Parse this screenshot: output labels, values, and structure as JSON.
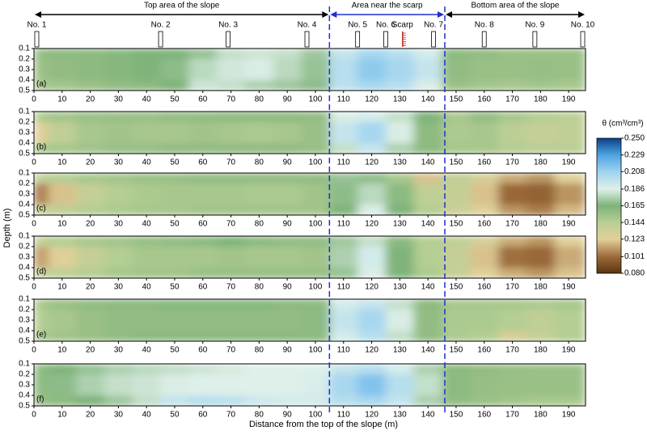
{
  "chart_data": {
    "type": "contour",
    "x_label": "Distance from the top of the slope (m)",
    "y_label": "Depth (m)",
    "xlim": [
      0,
      196
    ],
    "xticks": [
      0,
      10,
      20,
      30,
      40,
      50,
      60,
      70,
      80,
      90,
      100,
      110,
      120,
      130,
      140,
      150,
      160,
      170,
      180,
      190
    ],
    "ylim": [
      0.1,
      0.5
    ],
    "yticks": [
      0.1,
      0.2,
      0.3,
      0.4,
      0.5
    ],
    "x": [
      0,
      10,
      20,
      30,
      40,
      50,
      60,
      70,
      80,
      90,
      100,
      110,
      120,
      130,
      140,
      150,
      160,
      170,
      180,
      190
    ],
    "depths": [
      0.1,
      0.3,
      0.5
    ],
    "colorbar": {
      "label": "θ (cm³/cm³)",
      "ticks": [
        {
          "value": 0.08,
          "label": "0.080"
        },
        {
          "value": 0.101,
          "label": "0.101"
        },
        {
          "value": 0.123,
          "label": "0.123"
        },
        {
          "value": 0.144,
          "label": "0.144"
        },
        {
          "value": 0.165,
          "label": "0.165"
        },
        {
          "value": 0.186,
          "label": "0.186"
        },
        {
          "value": 0.208,
          "label": "0.208"
        },
        {
          "value": 0.229,
          "label": "0.229"
        },
        {
          "value": 0.25,
          "label": "0.250"
        }
      ],
      "colors": [
        "#5c3310",
        "#9c6b3a",
        "#e3cf9a",
        "#b7cf94",
        "#7fb37a",
        "#dff0ea",
        "#9ed3f0",
        "#4da3e0",
        "#0b3f8a"
      ]
    },
    "regions": [
      {
        "label": "Top area of the slope",
        "from": 0,
        "to": 105,
        "color": "#000000",
        "text_color": "#1f2fa0"
      },
      {
        "label": "Area near the scarp",
        "from": 105,
        "to": 146,
        "color": "#1f2fd0",
        "text_color": "#1f2fa0"
      },
      {
        "label": "Bottom area of the slope",
        "from": 146,
        "to": 196,
        "color": "#000000",
        "text_color": "#1f2fa0"
      }
    ],
    "dividers": [
      105,
      146
    ],
    "probes": [
      {
        "label": "No. 1",
        "x": 1
      },
      {
        "label": "No. 2",
        "x": 45
      },
      {
        "label": "No. 3",
        "x": 69
      },
      {
        "label": "No. 4",
        "x": 97
      },
      {
        "label": "No. 5",
        "x": 115
      },
      {
        "label": "No. 6",
        "x": 125
      },
      {
        "label": "No. 7",
        "x": 142
      },
      {
        "label": "No. 8",
        "x": 160
      },
      {
        "label": "No. 9",
        "x": 178
      },
      {
        "label": "No. 10",
        "x": 195
      }
    ],
    "scarp": {
      "label": "Scarp",
      "x": 131
    },
    "panels": [
      {
        "label": "(a)",
        "z": [
          [
            0.158,
            0.16,
            0.16,
            0.162,
            0.165,
            0.165,
            0.17,
            0.18,
            0.182,
            0.18,
            0.172,
            0.195,
            0.205,
            0.2,
            0.19,
            0.16,
            0.158,
            0.155,
            0.155,
            0.155
          ],
          [
            0.155,
            0.158,
            0.16,
            0.162,
            0.165,
            0.168,
            0.178,
            0.183,
            0.185,
            0.178,
            0.17,
            0.2,
            0.212,
            0.205,
            0.195,
            0.158,
            0.155,
            0.155,
            0.156,
            0.155
          ],
          [
            0.15,
            0.152,
            0.155,
            0.158,
            0.16,
            0.165,
            0.182,
            0.18,
            0.175,
            0.172,
            0.168,
            0.198,
            0.205,
            0.2,
            0.185,
            0.155,
            0.152,
            0.15,
            0.152,
            0.15
          ]
        ]
      },
      {
        "label": "(b)",
        "z": [
          [
            0.148,
            0.152,
            0.155,
            0.156,
            0.156,
            0.158,
            0.158,
            0.16,
            0.16,
            0.16,
            0.158,
            0.185,
            0.19,
            0.18,
            0.165,
            0.15,
            0.158,
            0.15,
            0.145,
            0.142
          ],
          [
            0.125,
            0.14,
            0.15,
            0.152,
            0.15,
            0.15,
            0.152,
            0.15,
            0.148,
            0.15,
            0.155,
            0.195,
            0.205,
            0.185,
            0.16,
            0.148,
            0.15,
            0.142,
            0.138,
            0.14
          ],
          [
            0.148,
            0.15,
            0.152,
            0.155,
            0.156,
            0.158,
            0.158,
            0.158,
            0.158,
            0.158,
            0.156,
            0.18,
            0.195,
            0.175,
            0.16,
            0.15,
            0.15,
            0.145,
            0.142,
            0.142
          ]
        ]
      },
      {
        "label": "(c)",
        "z": [
          [
            0.14,
            0.145,
            0.15,
            0.152,
            0.155,
            0.156,
            0.158,
            0.158,
            0.158,
            0.158,
            0.158,
            0.17,
            0.168,
            0.15,
            0.12,
            0.14,
            0.13,
            0.115,
            0.11,
            0.125
          ],
          [
            0.105,
            0.12,
            0.138,
            0.145,
            0.148,
            0.15,
            0.15,
            0.15,
            0.148,
            0.148,
            0.152,
            0.168,
            0.178,
            0.16,
            0.14,
            0.138,
            0.12,
            0.1,
            0.098,
            0.11
          ],
          [
            0.135,
            0.14,
            0.145,
            0.148,
            0.15,
            0.15,
            0.152,
            0.152,
            0.152,
            0.152,
            0.152,
            0.165,
            0.185,
            0.165,
            0.145,
            0.135,
            0.125,
            0.11,
            0.105,
            0.118
          ]
        ]
      },
      {
        "label": "(d)",
        "z": [
          [
            0.14,
            0.145,
            0.15,
            0.152,
            0.156,
            0.158,
            0.16,
            0.165,
            0.16,
            0.158,
            0.158,
            0.172,
            0.18,
            0.16,
            0.145,
            0.14,
            0.13,
            0.115,
            0.11,
            0.125
          ],
          [
            0.112,
            0.125,
            0.138,
            0.145,
            0.15,
            0.15,
            0.15,
            0.152,
            0.15,
            0.15,
            0.152,
            0.175,
            0.19,
            0.165,
            0.145,
            0.138,
            0.12,
            0.102,
            0.1,
            0.115
          ],
          [
            0.135,
            0.14,
            0.145,
            0.15,
            0.152,
            0.152,
            0.155,
            0.155,
            0.155,
            0.155,
            0.155,
            0.17,
            0.185,
            0.165,
            0.148,
            0.138,
            0.125,
            0.115,
            0.11,
            0.12
          ]
        ]
      },
      {
        "label": "(e)",
        "z": [
          [
            0.15,
            0.155,
            0.158,
            0.16,
            0.16,
            0.162,
            0.162,
            0.162,
            0.162,
            0.16,
            0.16,
            0.19,
            0.195,
            0.18,
            0.16,
            0.15,
            0.15,
            0.15,
            0.148,
            0.15
          ],
          [
            0.145,
            0.15,
            0.155,
            0.158,
            0.158,
            0.158,
            0.158,
            0.158,
            0.158,
            0.158,
            0.16,
            0.195,
            0.205,
            0.185,
            0.158,
            0.148,
            0.148,
            0.145,
            0.14,
            0.145
          ],
          [
            0.148,
            0.152,
            0.155,
            0.158,
            0.16,
            0.16,
            0.16,
            0.16,
            0.16,
            0.16,
            0.16,
            0.19,
            0.2,
            0.18,
            0.158,
            0.148,
            0.145,
            0.13,
            0.138,
            0.145
          ]
        ]
      },
      {
        "label": "(f)",
        "z": [
          [
            0.16,
            0.165,
            0.17,
            0.175,
            0.178,
            0.18,
            0.182,
            0.184,
            0.186,
            0.186,
            0.186,
            0.195,
            0.2,
            0.19,
            0.175,
            0.16,
            0.158,
            0.156,
            0.155,
            0.155
          ],
          [
            0.16,
            0.168,
            0.175,
            0.18,
            0.182,
            0.185,
            0.186,
            0.186,
            0.186,
            0.186,
            0.188,
            0.205,
            0.215,
            0.2,
            0.18,
            0.16,
            0.156,
            0.155,
            0.155,
            0.155
          ],
          [
            0.155,
            0.16,
            0.165,
            0.172,
            0.18,
            0.195,
            0.2,
            0.198,
            0.192,
            0.19,
            0.19,
            0.2,
            0.205,
            0.195,
            0.175,
            0.158,
            0.155,
            0.152,
            0.15,
            0.15
          ]
        ]
      }
    ]
  }
}
